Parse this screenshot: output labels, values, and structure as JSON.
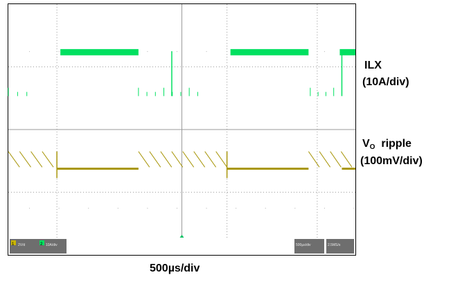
{
  "chart_data": {
    "type": "line",
    "title": "",
    "time_scale": "500µs/div",
    "grid": true,
    "divisions": {
      "x": 10,
      "y": 8
    },
    "switching_period_div": 4.9,
    "series": [
      {
        "name": "ILX",
        "scale": "(10A/div)",
        "color": "#00e060",
        "description_values": {
          "high_level_div": 2.5,
          "baseline_div": 1.2,
          "burst_on_div": [
            [
              1.5,
              3.75
            ],
            [
              6.4,
              8.65
            ]
          ],
          "burst_start_div": [
            -0.3,
            4.65,
            9.55
          ],
          "pulse_cluster_div": [
            [
              0.0,
              0.8
            ],
            [
              3.75,
              5.7
            ],
            [
              8.7,
              9.6
            ]
          ]
        }
      },
      {
        "name_main": "V",
        "name_sub": "O",
        "name_suffix": "  ripple",
        "scale": "(100mV/div)",
        "color": "#a8960a",
        "description_values": {
          "flat_level_div": -1.25,
          "sawtooth_top_div": -0.7,
          "sawtooth_bottom_div": -1.2,
          "dip_div": -1.55,
          "flat_segments_div": [
            [
              1.4,
              3.75
            ],
            [
              6.3,
              8.65
            ]
          ],
          "ripple_segments_div": [
            [
              0.0,
              1.3
            ],
            [
              3.75,
              6.3
            ],
            [
              8.65,
              9.9
            ]
          ]
        }
      }
    ]
  },
  "status": {
    "left_ch1": "1",
    "left_ch2": "2",
    "left_readout_1": "2V/d",
    "left_readout_2": "10A/div",
    "right_readout_1": "500µs/div",
    "right_readout_2": "2.5MS/s"
  }
}
